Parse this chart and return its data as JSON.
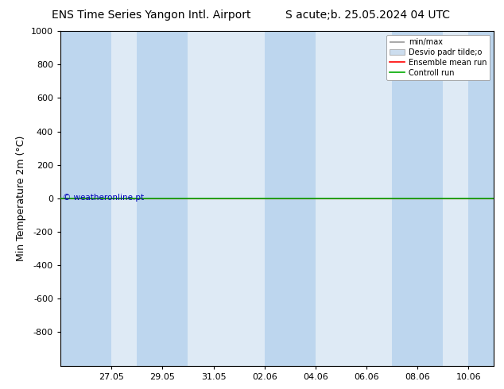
{
  "title_left": "ENS Time Series Yangon Intl. Airport",
  "title_right": "S acute;b. 25.05.2024 04 UTC",
  "ylabel": "Min Temperature 2m (°C)",
  "ylim_top": -1000,
  "ylim_bottom": 1000,
  "yticks": [
    -800,
    -600,
    -400,
    -200,
    0,
    200,
    400,
    600,
    800,
    1000
  ],
  "background_color": "#ffffff",
  "plot_bg_color": "#deeaf5",
  "shade_color": "#bdd6ee",
  "copyright_text": "© weatheronline.pt",
  "copyright_color": "#0000bb",
  "green_line_y": 0,
  "red_line_y": 0,
  "legend_entries": [
    "min/max",
    "Desvio padr tilde;o",
    "Ensemble mean run",
    "Controll run"
  ],
  "legend_colors_line": [
    "#999999",
    "#bbbbbb",
    "#ff0000",
    "#00aa00"
  ],
  "x_tick_labels": [
    "27.05",
    "29.05",
    "31.05",
    "02.06",
    "04.06",
    "06.06",
    "08.06",
    "10.06"
  ],
  "x_tick_positions": [
    2,
    4,
    6,
    8,
    10,
    12,
    14,
    16
  ],
  "x_shade_pairs": [
    [
      0,
      2
    ],
    [
      3,
      5
    ],
    [
      8,
      10
    ],
    [
      13,
      15
    ],
    [
      16,
      17
    ]
  ],
  "xlim": [
    0,
    17
  ],
  "title_fontsize": 10,
  "axis_label_fontsize": 9,
  "tick_fontsize": 8,
  "legend_fontsize": 7
}
